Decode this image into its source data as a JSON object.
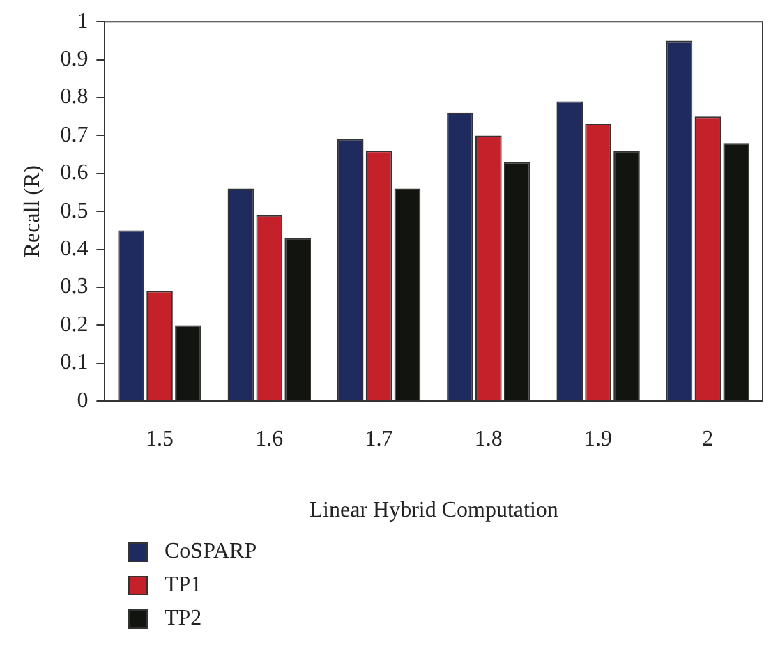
{
  "chart_data": {
    "type": "bar",
    "xlabel": "Linear Hybrid Computation",
    "ylabel": "Recall (R)",
    "categories": [
      "1.5",
      "1.6",
      "1.7",
      "1.8",
      "1.9",
      "2"
    ],
    "series": [
      {
        "name": "CoSPARP",
        "color": "#1f2a5e",
        "values": [
          0.45,
          0.56,
          0.69,
          0.76,
          0.79,
          0.95
        ]
      },
      {
        "name": "TP1",
        "color": "#c4212b",
        "values": [
          0.29,
          0.49,
          0.66,
          0.7,
          0.73,
          0.75
        ]
      },
      {
        "name": "TP2",
        "color": "#12140f",
        "values": [
          0.2,
          0.43,
          0.56,
          0.63,
          0.66,
          0.68
        ]
      }
    ],
    "ylim": [
      0,
      1
    ],
    "yticks": [
      0,
      0.1,
      0.2,
      0.3,
      0.4,
      0.5,
      0.6,
      0.7,
      0.8,
      0.9,
      1
    ],
    "grid": false,
    "legend": "bottom left"
  }
}
